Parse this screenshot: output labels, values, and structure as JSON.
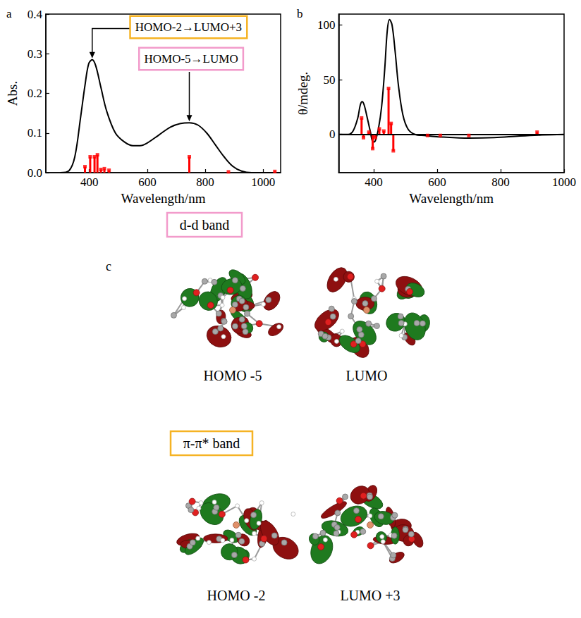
{
  "chart_data": [
    {
      "type": "line",
      "title": "a",
      "x_label": "Wavelength/nm",
      "y_label": "Abs.",
      "xlim": [
        250,
        1060
      ],
      "xticks": [
        400,
        600,
        800,
        1000
      ],
      "ylim": [
        0,
        0.4
      ],
      "yticks": [
        {
          "value": 0,
          "label": "0.0"
        },
        0.1,
        0.2,
        0.3,
        0.4
      ],
      "grid": false,
      "series": [
        {
          "type": "line",
          "color": "#000000",
          "x": [
            300,
            330,
            350,
            370,
            385,
            398,
            410,
            422,
            440,
            460,
            490,
            520,
            550,
            575,
            600,
            640,
            680,
            715,
            745,
            775,
            805,
            835,
            865,
            895,
            925,
            960,
            1060
          ],
          "values": [
            0,
            0.005,
            0.04,
            0.14,
            0.22,
            0.275,
            0.285,
            0.27,
            0.215,
            0.155,
            0.1,
            0.078,
            0.068,
            0.068,
            0.075,
            0.095,
            0.115,
            0.124,
            0.126,
            0.12,
            0.1,
            0.07,
            0.04,
            0.016,
            0.004,
            0,
            0
          ]
        },
        {
          "type": "bar",
          "color": "#ff0000",
          "marker": "square",
          "x": [
            385,
            403,
            418,
            428,
            440,
            452,
            468,
            745,
            880,
            1040
          ],
          "values": [
            0.015,
            0.04,
            0.04,
            0.045,
            0.008,
            0.01,
            0.006,
            0.04,
            0.002,
            0.003
          ]
        }
      ],
      "annotations": [
        {
          "text": "HOMO-2→LUMO+3",
          "x": 410,
          "y": 0.285,
          "color": "#f5b324"
        },
        {
          "text": "HOMO-5→LUMO",
          "x": 745,
          "y": 0.126,
          "color": "#f29bcb"
        }
      ]
    },
    {
      "type": "line",
      "title": "b",
      "x_label": "Wavelength/nm",
      "y_label": "θ/mdeg.",
      "xlim": [
        290,
        1000
      ],
      "xticks": [
        400,
        600,
        800,
        1000
      ],
      "ylim": [
        -35,
        110
      ],
      "yticks": [
        0,
        50,
        100
      ],
      "grid": false,
      "series": [
        {
          "type": "line",
          "color": "#000000",
          "x": [
            290,
            320,
            335,
            350,
            358,
            364,
            370,
            380,
            390,
            398,
            405,
            415,
            425,
            435,
            443,
            450,
            458,
            468,
            478,
            492,
            508,
            530,
            560,
            620,
            700,
            780,
            860,
            930,
            1000
          ],
          "values": [
            0,
            0,
            3,
            15,
            27,
            30,
            27,
            15,
            2,
            -7,
            -6,
            5,
            25,
            60,
            95,
            105,
            100,
            75,
            45,
            18,
            5,
            0,
            -1,
            -2.5,
            -3.5,
            -3,
            -1.5,
            -0.5,
            0
          ]
        },
        {
          "type": "bar",
          "color": "#ff0000",
          "marker": "square",
          "x": [
            362,
            368,
            385,
            397,
            405,
            418,
            432,
            447,
            455,
            462,
            570,
            610,
            700,
            915
          ],
          "values": [
            15,
            -3,
            2,
            -13,
            -3,
            5,
            3,
            42,
            10,
            -15,
            -1,
            -1,
            -1,
            2
          ]
        }
      ]
    }
  ],
  "panel_c": {
    "label": "c",
    "groups": [
      {
        "title": "d-d band",
        "color": "#f29bcb",
        "orbitals": [
          "HOMO -5",
          "LUMO"
        ]
      },
      {
        "title": "π-π* band",
        "color": "#f5b324",
        "orbitals": [
          "HOMO -2",
          "LUMO +3"
        ]
      }
    ]
  }
}
